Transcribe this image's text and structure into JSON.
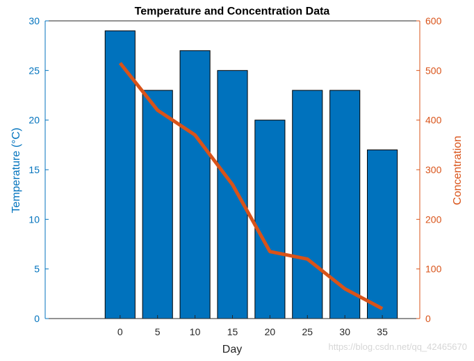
{
  "chart_data": {
    "type": "bar+line",
    "title": "Temperature and Concentration Data",
    "xlabel": "Day",
    "categories": [
      "0",
      "5",
      "10",
      "15",
      "20",
      "25",
      "30",
      "35"
    ],
    "x": [
      0,
      5,
      10,
      15,
      20,
      25,
      30,
      35
    ],
    "xlim": [
      -10,
      40
    ],
    "series": [
      {
        "name": "Temperature",
        "type": "bar",
        "axis": "left",
        "color": "#0072bd",
        "values": [
          29,
          23,
          27,
          25,
          20,
          23,
          23,
          17
        ]
      },
      {
        "name": "Concentration",
        "type": "line",
        "axis": "right",
        "color": "#d95319",
        "values": [
          515,
          420,
          370,
          270,
          135,
          120,
          60,
          20
        ]
      }
    ],
    "y_left": {
      "label": "Temperature (°C)",
      "ylim": [
        0,
        30
      ],
      "ticks": [
        "0",
        "5",
        "10",
        "15",
        "20",
        "25",
        "30"
      ],
      "color": "#0072bd"
    },
    "y_right": {
      "label": "Concentration",
      "ylim": [
        0,
        600
      ],
      "ticks": [
        "0",
        "100",
        "200",
        "300",
        "400",
        "500",
        "600"
      ],
      "color": "#d95319"
    },
    "grid": false
  },
  "watermark": "https://blog.csdn.net/qq_42465670"
}
